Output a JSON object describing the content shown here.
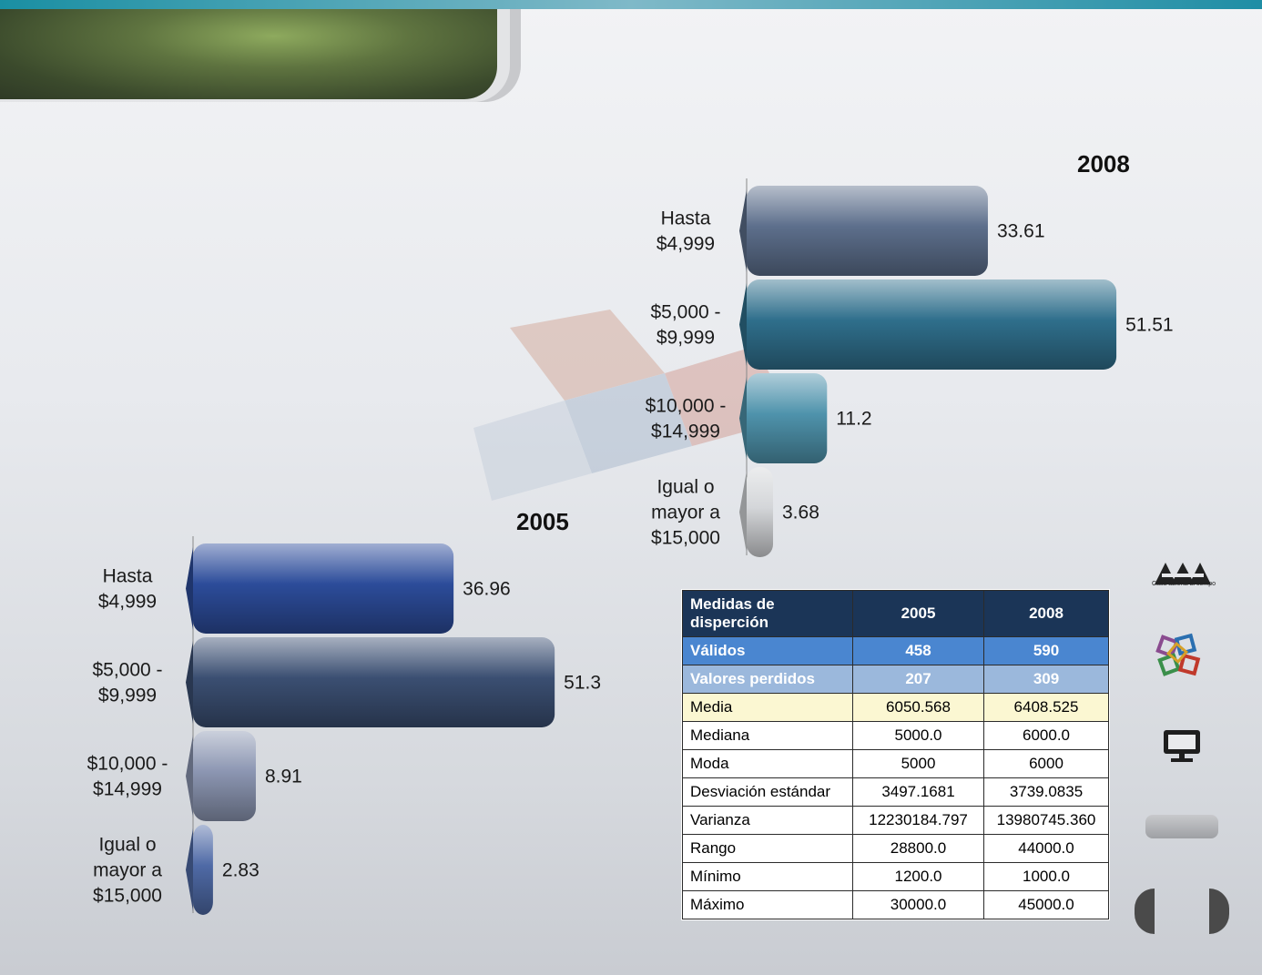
{
  "colors": {
    "bar_2008": [
      "#5d6f8c",
      "#2f6f8c",
      "#4f93ac",
      "#d4d6d9"
    ],
    "bar_2005": [
      "#2c4c9a",
      "#3b4f72",
      "#8c96b2",
      "#4f6aa6"
    ],
    "table_header": "#1b3557",
    "row_valid": "#4a86d0",
    "row_missing": "#9bb8dc",
    "row_highlight": "#fbf7d2"
  },
  "chart_data": [
    {
      "type": "bar",
      "orientation": "horizontal",
      "title": "2008",
      "categories": [
        [
          "Hasta",
          "$4,999"
        ],
        [
          "$5,000 -",
          "$9,999"
        ],
        [
          "$10,000 -",
          "$14,999"
        ],
        [
          "Igual o",
          "mayor a",
          "$15,000"
        ]
      ],
      "values": [
        33.61,
        51.51,
        11.2,
        3.68
      ],
      "value_labels": [
        "33.61",
        "51.51",
        "11.2",
        "3.68"
      ],
      "xlim": [
        0,
        60
      ]
    },
    {
      "type": "bar",
      "orientation": "horizontal",
      "title": "2005",
      "categories": [
        [
          "Hasta",
          "$4,999"
        ],
        [
          "$5,000 -",
          "$9,999"
        ],
        [
          "$10,000 -",
          "$14,999"
        ],
        [
          "Igual o",
          "mayor a",
          "$15,000"
        ]
      ],
      "values": [
        36.96,
        51.3,
        8.91,
        2.83
      ],
      "value_labels": [
        "36.96",
        "51.3",
        "8.91",
        "2.83"
      ],
      "xlim": [
        0,
        62
      ]
    },
    {
      "type": "table",
      "header": [
        "Medidas de disperción",
        "2005",
        "2008"
      ],
      "rows": [
        [
          "Válidos",
          "458",
          "590"
        ],
        [
          "Valores perdidos",
          "207",
          "309"
        ],
        [
          "Media",
          "6050.568",
          "6408.525"
        ],
        [
          "Mediana",
          "5000.0",
          "6000.0"
        ],
        [
          "Moda",
          "5000",
          "6000"
        ],
        [
          "Desviación estándar",
          "3497.1681",
          "3739.0835"
        ],
        [
          "Varianza",
          "12230184.797",
          "13980745.360"
        ],
        [
          "Rango",
          "28800.0",
          "44000.0"
        ],
        [
          "Mínimo",
          "1200.0",
          "1000.0"
        ],
        [
          "Máximo",
          "30000.0",
          "45000.0"
        ]
      ]
    }
  ],
  "sidebar": {
    "logo_text": "Casa abierta al tiempo",
    "icons": [
      "uam-logo-icon",
      "cubes-icon",
      "monitor-icon",
      "gray-pill-button",
      "nav-left-icon",
      "nav-right-icon"
    ]
  }
}
